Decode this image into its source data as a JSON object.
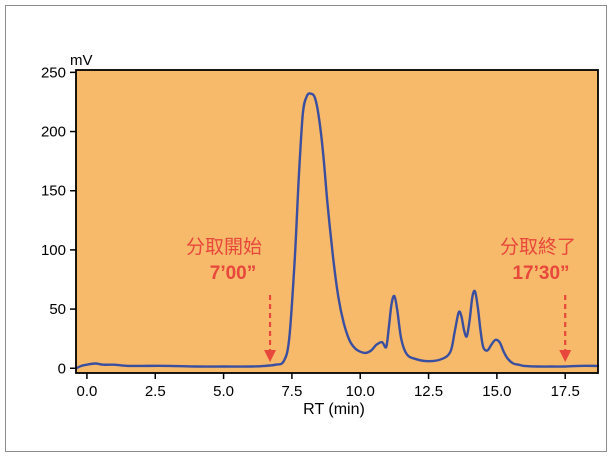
{
  "chart_data": {
    "type": "line",
    "xlabel": "RT (min)",
    "ylabel": "mV",
    "xlim": [
      -0.4,
      18.7
    ],
    "ylim": [
      -4,
      252
    ],
    "x_ticks": [
      "0.0",
      "2.5",
      "5.0",
      "7.5",
      "10.0",
      "12.5",
      "15.0",
      "17.5"
    ],
    "y_ticks": [
      "0",
      "50",
      "100",
      "150",
      "200",
      "250"
    ],
    "grid": false,
    "background_color": "#f7b96a",
    "line_color": "#3a4fa0",
    "series": [
      {
        "x": [
          -0.4,
          -0.2,
          0.0,
          0.3,
          0.6,
          1.0,
          1.5,
          2.0,
          3.0,
          4.0,
          5.0,
          6.0,
          6.5,
          6.9,
          7.2,
          7.4,
          7.6,
          7.75,
          7.9,
          8.05,
          8.2,
          8.35,
          8.5,
          8.65,
          8.8,
          9.0,
          9.2,
          9.4,
          9.6,
          9.8,
          10.0,
          10.2,
          10.4,
          10.6,
          10.8,
          10.95,
          11.05,
          11.15,
          11.25,
          11.35,
          11.5,
          11.7,
          12.0,
          12.5,
          13.0,
          13.3,
          13.45,
          13.6,
          13.7,
          13.8,
          13.9,
          14.0,
          14.1,
          14.2,
          14.3,
          14.4,
          14.5,
          14.65,
          14.8,
          14.95,
          15.1,
          15.25,
          15.4,
          15.6,
          15.8,
          16.0,
          16.5,
          17.0,
          17.5,
          18.0,
          18.7
        ],
        "y": [
          0,
          2,
          3,
          4,
          3,
          3,
          2,
          2,
          2,
          1.5,
          1.5,
          1.5,
          2,
          3,
          6,
          25,
          90,
          160,
          215,
          230,
          232,
          228,
          210,
          180,
          140,
          95,
          60,
          38,
          24,
          17,
          14,
          13,
          15,
          20,
          22,
          18,
          35,
          55,
          61,
          50,
          25,
          12,
          8,
          6,
          8,
          14,
          30,
          47,
          44,
          32,
          27,
          40,
          60,
          65,
          52,
          32,
          18,
          15,
          20,
          24,
          22,
          14,
          8,
          4,
          3,
          2,
          1.5,
          1.5,
          1.5,
          2,
          2
        ]
      }
    ],
    "annotations": [
      {
        "label": "分取開始",
        "time": "7’00”",
        "x": 6.7
      },
      {
        "label": "分取終了",
        "time": "17’30”",
        "x": 17.5
      }
    ]
  }
}
